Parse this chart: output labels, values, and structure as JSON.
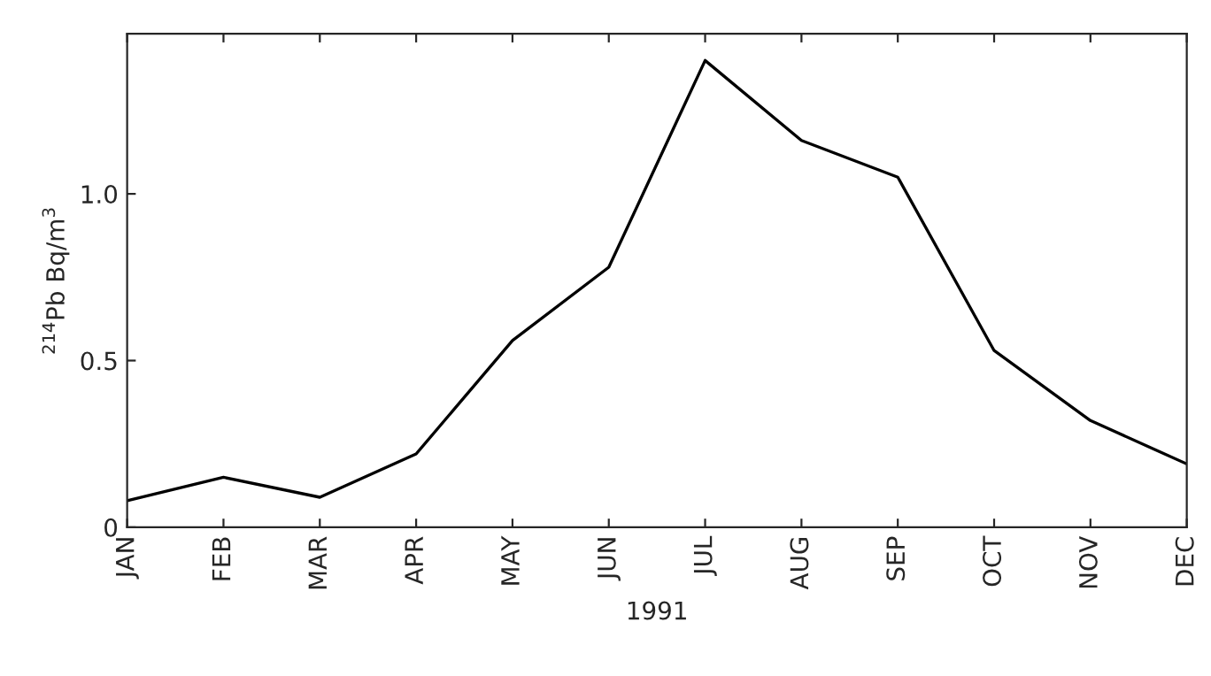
{
  "chart_data": {
    "type": "line",
    "xlabel": "1991",
    "ylabel": "$^{214}$Pb Bq/m$^{3}$",
    "categories": [
      "JAN",
      "FEB",
      "MAR",
      "APR",
      "MAY",
      "JUN",
      "JUL",
      "AUG",
      "SEP",
      "OCT",
      "NOV",
      "DEC"
    ],
    "series": [
      {
        "color": "#000000",
        "values": [
          0.08,
          0.15,
          0.09,
          0.22,
          0.56,
          0.78,
          1.4,
          1.16,
          1.05,
          0.53,
          0.32,
          0.19
        ]
      }
    ],
    "ylim": [
      0,
      1.48
    ],
    "yticks": [
      {
        "value": 0,
        "label": "0"
      },
      {
        "value": 0.5,
        "label": "0.5"
      },
      {
        "value": 1,
        "label": "1.0"
      }
    ],
    "grid": false,
    "marker": "none",
    "line_style": "solid"
  }
}
